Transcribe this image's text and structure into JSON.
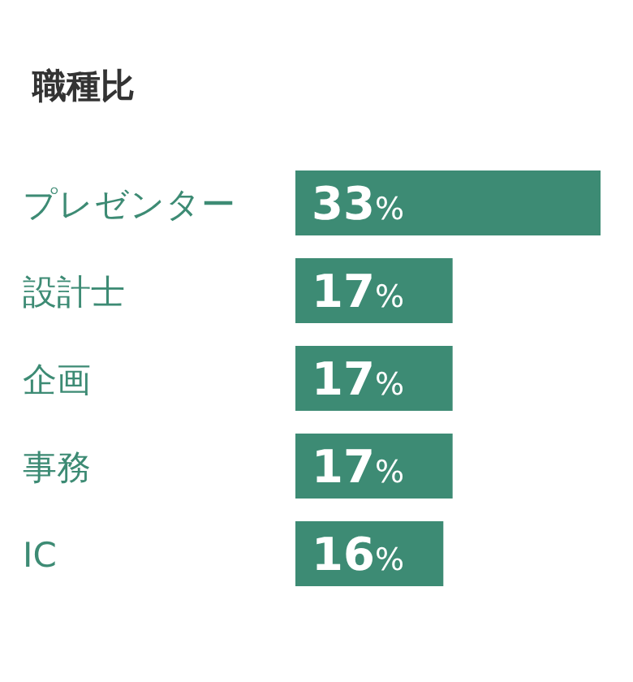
{
  "chart_data": {
    "type": "bar",
    "orientation": "horizontal",
    "title": "職種比",
    "categories": [
      "プレゼンター",
      "設計士",
      "企画",
      "事務",
      "IC"
    ],
    "values": [
      33,
      17,
      17,
      17,
      16
    ],
    "value_labels": [
      "33%",
      "17%",
      "17%",
      "17%",
      "16%"
    ],
    "color": "#3d8b74"
  }
}
